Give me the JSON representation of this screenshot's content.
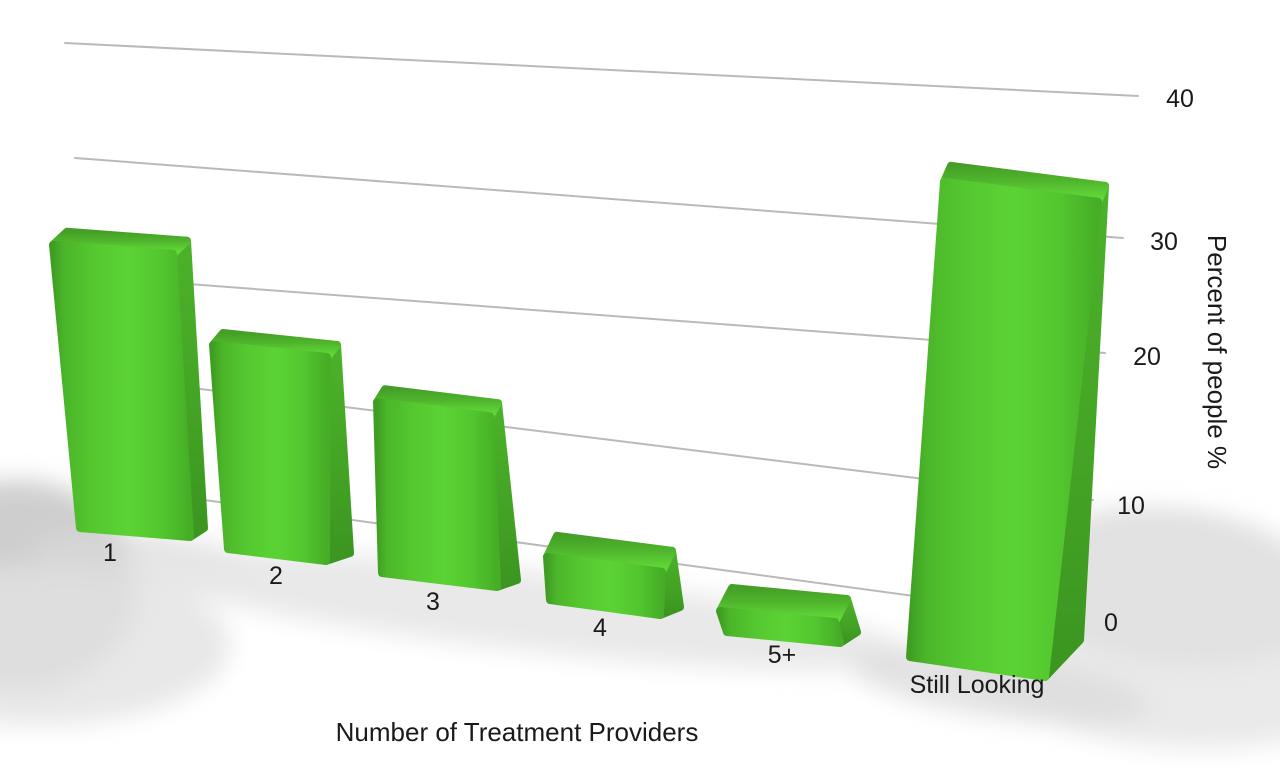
{
  "chart_data": {
    "type": "bar",
    "style": "3d-perspective-glossy",
    "title": "",
    "xlabel": "Number of Treatment Providers",
    "ylabel": "Percent of people %",
    "categories": [
      "1",
      "2",
      "3",
      "4",
      "5+",
      "Still Looking"
    ],
    "values": [
      24,
      17,
      14,
      4,
      2,
      36
    ],
    "series": [
      {
        "name": "Percent of people",
        "values": [
          24,
          17,
          14,
          4,
          2,
          36
        ]
      }
    ],
    "yticks": [
      0,
      10,
      20,
      30,
      40
    ],
    "ylim": [
      0,
      40
    ],
    "grid": true,
    "legend": false,
    "colors": {
      "bar_front": "#54c62f",
      "bar_front_light": "#5bd334",
      "bar_front_dark": "#3f9e22",
      "bar_top_light": "#65da3c",
      "bar_top_dark": "#459f27",
      "bar_side": "#46a827",
      "bar_side_dark": "#3b9520",
      "gridline": "#b8b5b5",
      "text": "#1a1a1a",
      "background": "#ffffff",
      "floor_shadow": "#d2d2d2"
    }
  }
}
